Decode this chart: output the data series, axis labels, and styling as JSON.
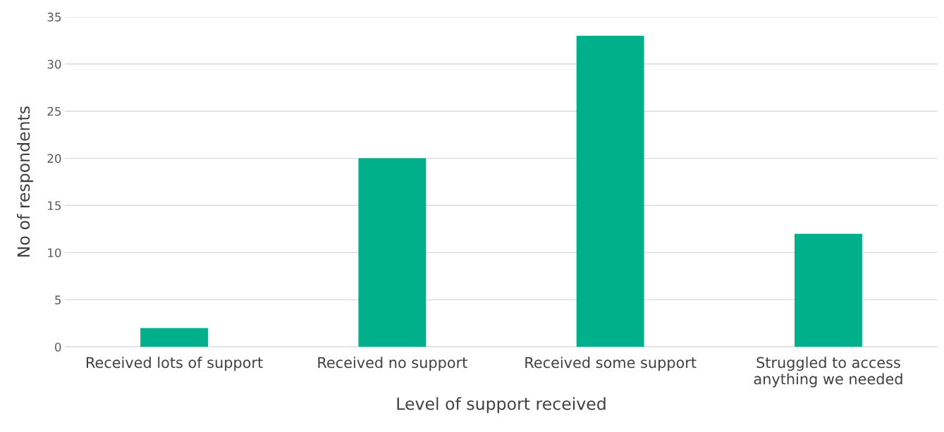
{
  "chart_data": {
    "type": "bar",
    "xlabel": "Level of support received",
    "ylabel": "No of respondents",
    "categories": [
      "Received lots of support",
      "Received no support",
      "Received some support",
      "Struggled to access\nanything we needed"
    ],
    "values": [
      2,
      20,
      33,
      12
    ],
    "color": "#00b08b",
    "ylim": [
      0,
      35
    ],
    "yticks": [
      0,
      5,
      10,
      15,
      20,
      25,
      30,
      35
    ],
    "grid": "y",
    "legend": false
  }
}
